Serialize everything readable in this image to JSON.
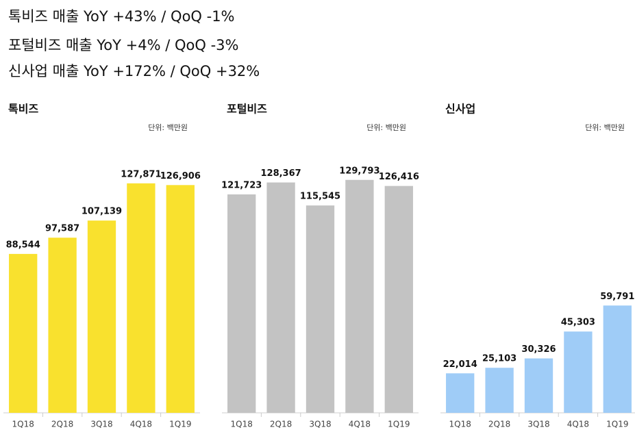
{
  "headline": [
    "톡비즈 매출  YoY +43% / QoQ -1%",
    "포털비즈 매출  YoY +4% / QoQ -3%",
    "신사업 매출  YoY +172% / QoQ +32%"
  ],
  "chart_data": [
    {
      "type": "bar",
      "title": "톡비즈",
      "subtitle": "단위: 백만원",
      "categories": [
        "1Q18",
        "2Q18",
        "3Q18",
        "4Q18",
        "1Q19"
      ],
      "values": [
        88544,
        97587,
        107139,
        127871,
        126906
      ],
      "value_labels": [
        "88,544",
        "97,587",
        "107,139",
        "127,871",
        "126,906"
      ],
      "color": "#f9e12e",
      "ylim": [
        0,
        140000
      ]
    },
    {
      "type": "bar",
      "title": "포털비즈",
      "subtitle": "단위: 백만원",
      "categories": [
        "1Q18",
        "2Q18",
        "3Q18",
        "4Q18",
        "1Q19"
      ],
      "values": [
        121723,
        128367,
        115545,
        129793,
        126416
      ],
      "value_labels": [
        "121,723",
        "128,367",
        "115,545",
        "129,793",
        "126,416"
      ],
      "color": "#c3c3c3",
      "ylim": [
        0,
        140000
      ]
    },
    {
      "type": "bar",
      "title": "신사업",
      "subtitle": "단위: 백만원",
      "categories": [
        "1Q18",
        "2Q18",
        "3Q18",
        "4Q18",
        "1Q19"
      ],
      "values": [
        22014,
        25103,
        30326,
        45303,
        59791
      ],
      "value_labels": [
        "22,014",
        "25,103",
        "30,326",
        "45,303",
        "59,791"
      ],
      "color": "#9fccf7",
      "ylim": [
        0,
        140000
      ]
    }
  ]
}
